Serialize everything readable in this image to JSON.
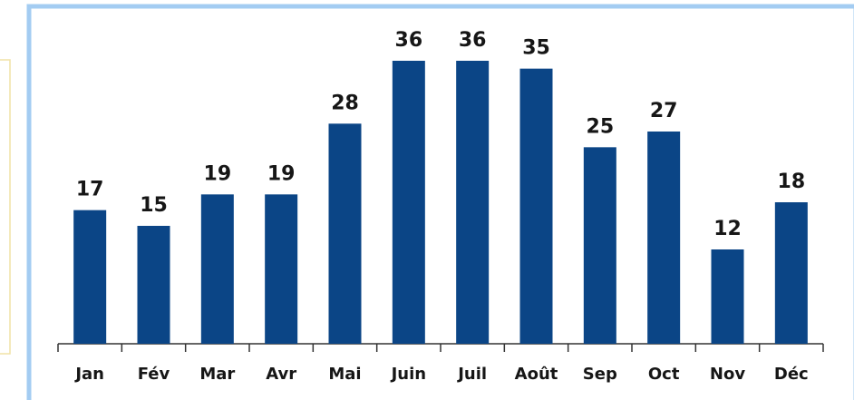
{
  "chart_data": {
    "type": "bar",
    "categories": [
      "Jan",
      "Fév",
      "Mar",
      "Avr",
      "Mai",
      "Juin",
      "Juil",
      "Août",
      "Sep",
      "Oct",
      "Nov",
      "Déc"
    ],
    "values": [
      17,
      15,
      19,
      19,
      28,
      36,
      36,
      35,
      25,
      27,
      12,
      18
    ],
    "color": "#0b4586"
  }
}
